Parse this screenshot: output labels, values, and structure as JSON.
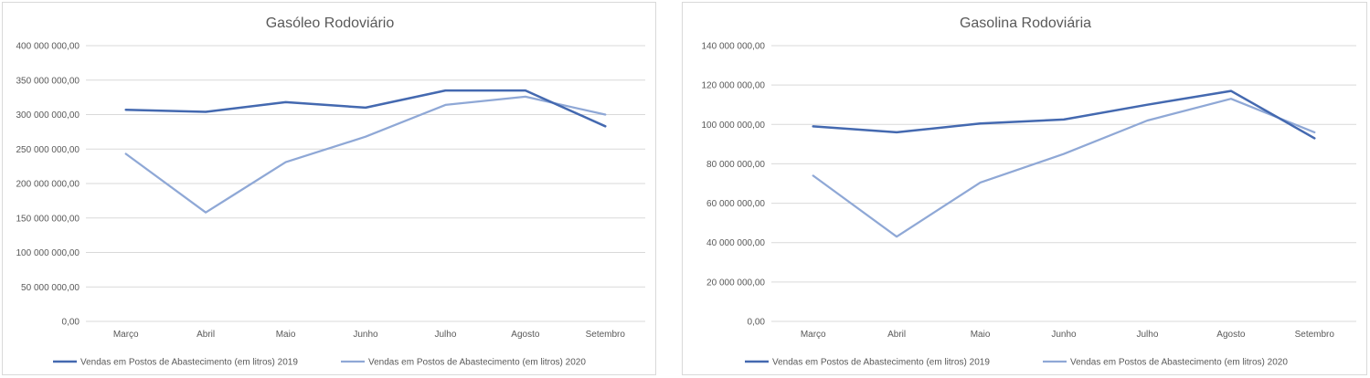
{
  "colors": {
    "series_2019": "#4469b0",
    "series_2020": "#8fa8d6",
    "grid": "#d9d9d9",
    "text": "#595959"
  },
  "chart_data": [
    {
      "type": "line",
      "title": "Gasóleo Rodoviário",
      "categories": [
        "Março",
        "Abril",
        "Maio",
        "Junho",
        "Julho",
        "Agosto",
        "Setembro"
      ],
      "ylim": [
        0,
        400000000
      ],
      "yticks": [
        0,
        50000000,
        100000000,
        150000000,
        200000000,
        250000000,
        300000000,
        350000000,
        400000000
      ],
      "ytick_labels": [
        "0,00",
        "50 000 000,00",
        "100 000 000,00",
        "150 000 000,00",
        "200 000 000,00",
        "250 000 000,00",
        "300 000 000,00",
        "350 000 000,00",
        "400 000 000,00"
      ],
      "grid": true,
      "legend": "bottom",
      "series": [
        {
          "name": "Vendas em Postos de Abastecimento  (em litros) 2019",
          "values": [
            307000000,
            304000000,
            318000000,
            310000000,
            335000000,
            335000000,
            283000000
          ]
        },
        {
          "name": "Vendas em Postos de Abastecimento  (em litros) 2020",
          "values": [
            243000000,
            158000000,
            231000000,
            268000000,
            314000000,
            326000000,
            300000000
          ]
        }
      ]
    },
    {
      "type": "line",
      "title": "Gasolina Rodoviária",
      "categories": [
        "Março",
        "Abril",
        "Maio",
        "Junho",
        "Julho",
        "Agosto",
        "Setembro"
      ],
      "ylim": [
        0,
        140000000
      ],
      "yticks": [
        0,
        20000000,
        40000000,
        60000000,
        80000000,
        100000000,
        120000000,
        140000000
      ],
      "ytick_labels": [
        "0,00",
        "20 000 000,00",
        "40 000 000,00",
        "60 000 000,00",
        "80 000 000,00",
        "100 000 000,00",
        "120 000 000,00",
        "140 000 000,00"
      ],
      "grid": true,
      "legend": "bottom",
      "series": [
        {
          "name": "Vendas em Postos de Abastecimento  (em litros) 2019",
          "values": [
            99000000,
            96000000,
            100500000,
            102500000,
            110000000,
            117000000,
            93000000
          ]
        },
        {
          "name": "Vendas em Postos de Abastecimento  (em litros) 2020",
          "values": [
            74000000,
            43000000,
            70500000,
            85000000,
            102000000,
            113000000,
            96000000
          ]
        }
      ]
    }
  ]
}
